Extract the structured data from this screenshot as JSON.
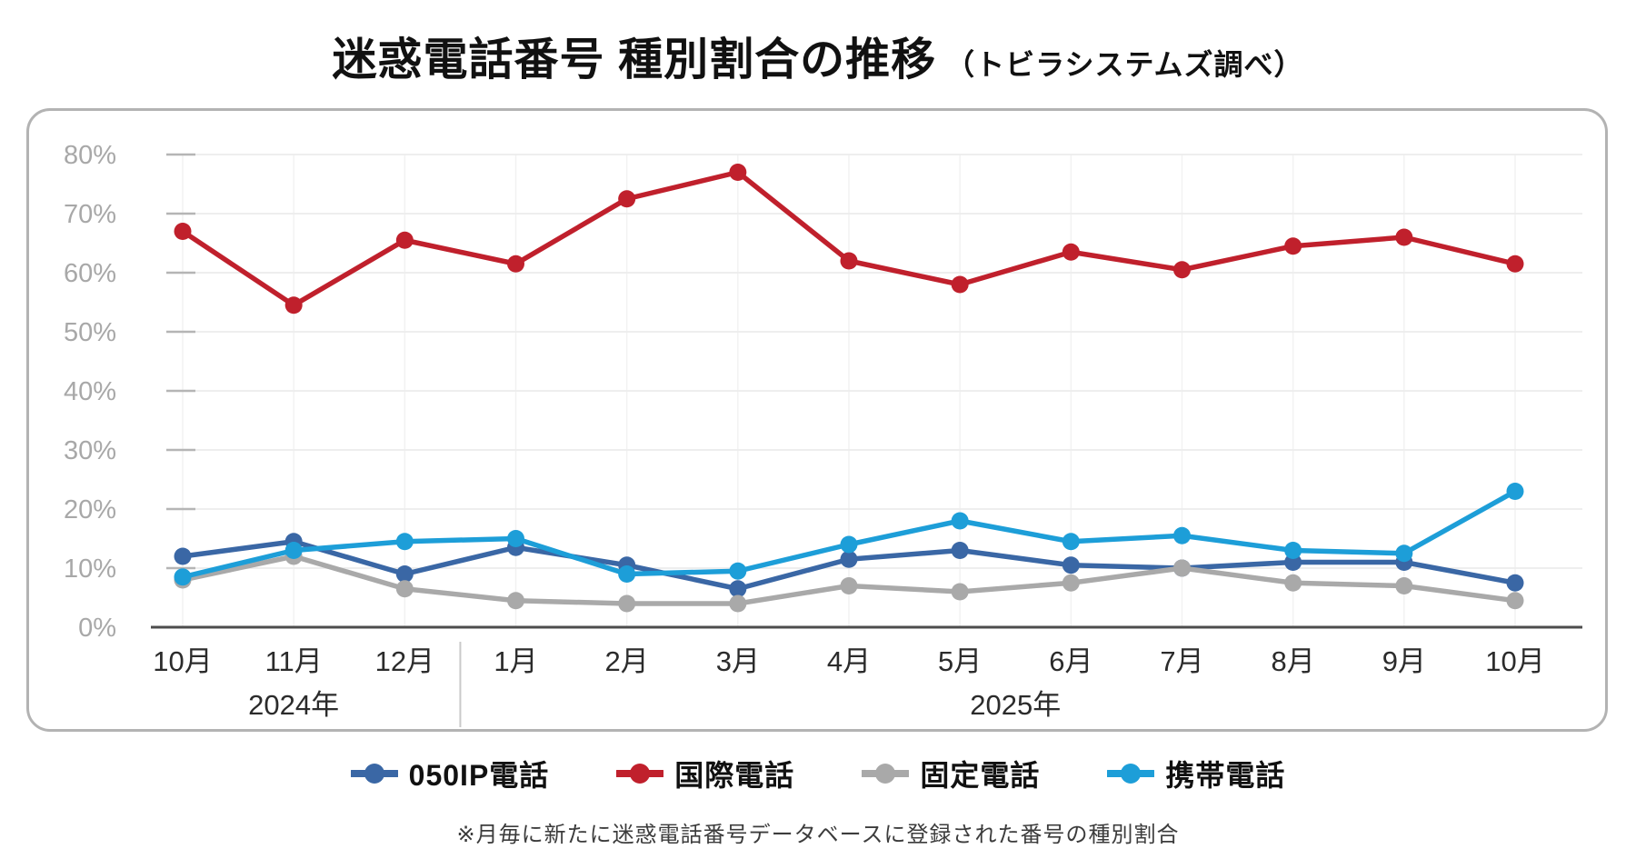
{
  "title": {
    "main": "迷惑電話番号 種別割合の推移",
    "sub": "（トビラシステムズ調べ）"
  },
  "footnote": "※月毎に新たに迷惑電話番号データベースに登録された番号の種別割合",
  "chart_data": {
    "type": "line",
    "categories": [
      "10月",
      "11月",
      "12月",
      "1月",
      "2月",
      "3月",
      "4月",
      "5月",
      "6月",
      "7月",
      "8月",
      "9月",
      "10月"
    ],
    "year_groups": [
      {
        "label": "2024年",
        "months": 3
      },
      {
        "label": "2025年",
        "months": 10
      }
    ],
    "ylim": [
      0,
      80
    ],
    "ytick_step": 10,
    "ytick_suffix": "%",
    "grid": true,
    "legend_position": "bottom",
    "axis_colors": {
      "tick_label": "#a8a8a8",
      "month_label": "#2b2b2b",
      "year_label": "#2b2b2b",
      "baseline": "#4d4d4d",
      "gridline": "#ececec",
      "tick_mark": "#b5b5b5",
      "year_separator": "#c9c9c9"
    },
    "series": [
      {
        "name": "050IP電話",
        "color": "#3a67a5",
        "values": [
          12,
          14.5,
          9,
          13.5,
          10.5,
          6.5,
          11.5,
          13,
          10.5,
          10,
          11,
          11,
          7.5
        ]
      },
      {
        "name": "固定電話",
        "color": "#a9a9a9",
        "values": [
          8,
          12,
          6.5,
          4.5,
          4,
          4,
          7,
          6,
          7.5,
          10,
          7.5,
          7,
          4.5
        ]
      },
      {
        "name": "携帯電話",
        "color": "#1d9ed8",
        "values": [
          8.5,
          13,
          14.5,
          15,
          9,
          9.5,
          14,
          18,
          14.5,
          15.5,
          13,
          12.5,
          23
        ]
      },
      {
        "name": "国際電話",
        "color": "#c0202c",
        "values": [
          67,
          54.5,
          65.5,
          61.5,
          72.5,
          77,
          62,
          58,
          63.5,
          60.5,
          64.5,
          66,
          61.5
        ]
      }
    ],
    "legend_order": [
      "050IP電話",
      "国際電話",
      "固定電話",
      "携帯電話"
    ]
  }
}
